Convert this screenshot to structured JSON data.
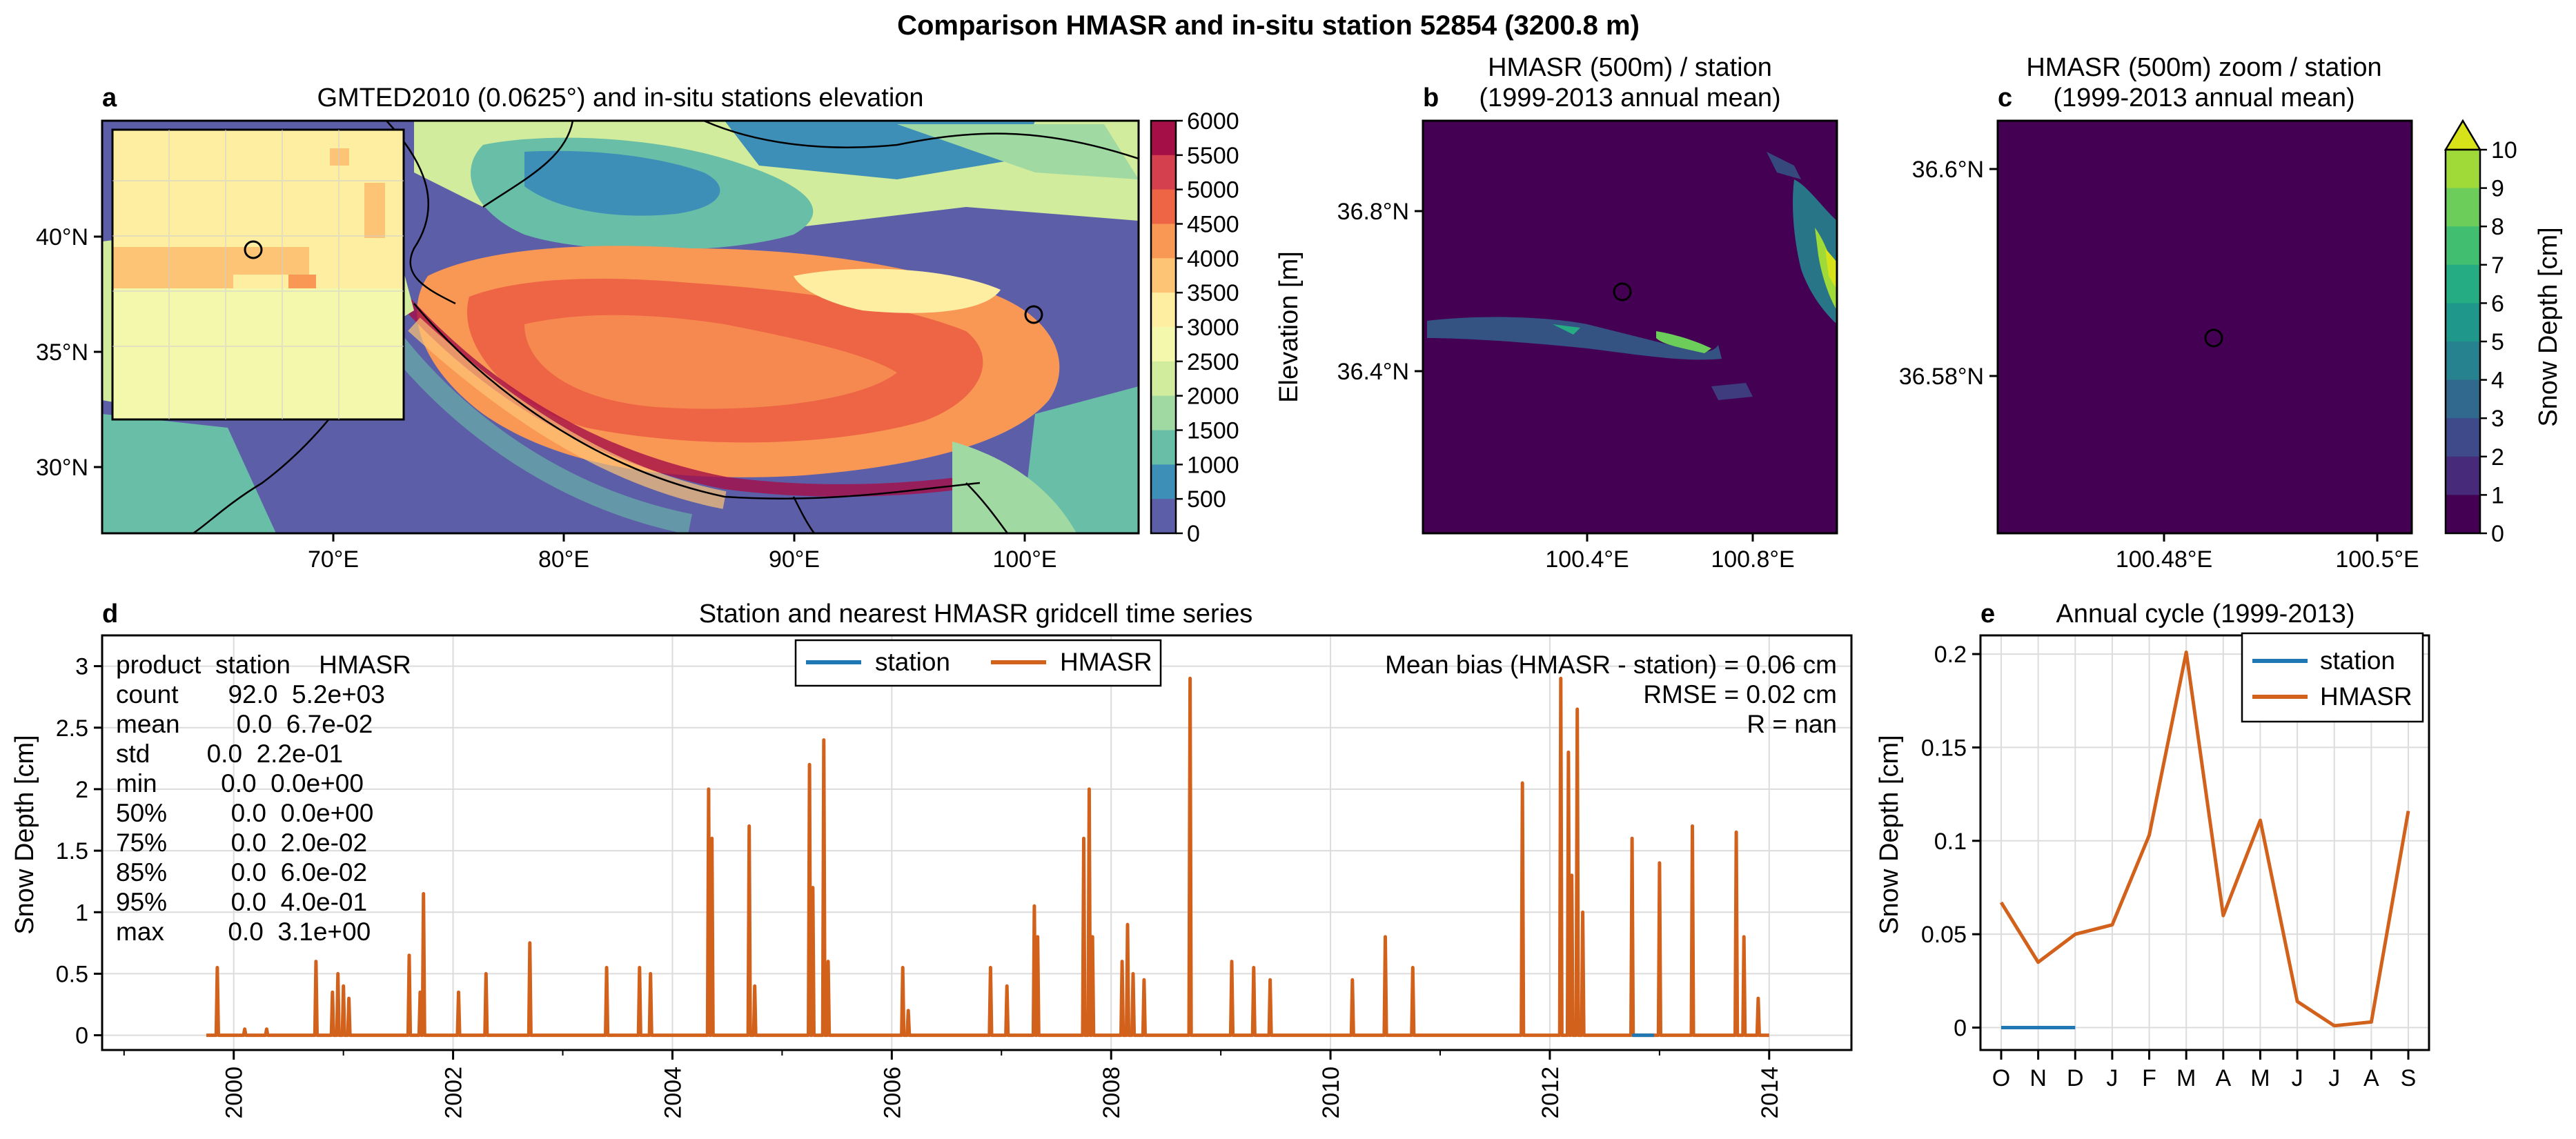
{
  "suptitle": "Comparison HMASR and in-situ station 52854 (3200.8 m)",
  "panels": {
    "a": {
      "letter": "a",
      "title": "GMTED2010 (0.0625°) and in-situ stations elevation",
      "xticks": [
        "70°E",
        "80°E",
        "90°E",
        "100°E"
      ],
      "yticks": [
        "40°N",
        "35°N",
        "30°N"
      ],
      "colorbar_label": "Elevation [m]",
      "colorbar_ticks": [
        "6000",
        "5500",
        "5000",
        "4500",
        "4000",
        "3500",
        "3000",
        "2500",
        "2000",
        "1500",
        "1000",
        "500",
        "0"
      ],
      "colorbar_colors": [
        "#a50f47",
        "#d4404e",
        "#ee6545",
        "#f99855",
        "#fdc476",
        "#feeea2",
        "#f4f8ad",
        "#d0ec9c",
        "#a1d9a3",
        "#69bea7",
        "#3d8fb8",
        "#5d5ea8"
      ]
    },
    "b": {
      "letter": "b",
      "title_line1": "HMASR (500m) / station",
      "title_line2": "(1999-2013 annual mean)",
      "xticks": [
        "100.4°E",
        "100.8°E"
      ],
      "yticks": [
        "36.8°N",
        "36.4°N"
      ]
    },
    "c": {
      "letter": "c",
      "title_line1": "HMASR (500m) zoom / station",
      "title_line2": "(1999-2013 annual mean)",
      "xticks": [
        "100.48°E",
        "100.5°E"
      ],
      "yticks": [
        "36.6°N",
        "36.58°N"
      ],
      "colorbar_label": "Snow Depth [cm]",
      "colorbar_ticks": [
        "10",
        "9",
        "8",
        "7",
        "6",
        "5",
        "4",
        "3",
        "2",
        "1",
        "0"
      ],
      "colorbar_colors": [
        "#d8e219",
        "#a0da39",
        "#6ccd5a",
        "#42be71",
        "#25ac82",
        "#1f988b",
        "#26828e",
        "#31688e",
        "#3e4a89",
        "#472a7a",
        "#440154"
      ]
    },
    "d": {
      "letter": "d",
      "title": "Station and nearest HMASR gridcell time series",
      "ylabel": "Snow Depth [cm]",
      "legend": [
        "station",
        "HMASR"
      ],
      "stats_header": "product  station    HMASR",
      "stats_rows": [
        "count       92.0  5.2e+03",
        "mean        0.0  6.7e-02",
        "std        0.0  2.2e-01",
        "min         0.0  0.0e+00",
        "50%         0.0  0.0e+00",
        "75%         0.0  2.0e-02",
        "85%         0.0  6.0e-02",
        "95%         0.0  4.0e-01",
        "max         0.0  3.1e+00"
      ],
      "metrics": [
        "Mean bias (HMASR - station) = 0.06 cm",
        "RMSE = 0.02 cm",
        "R = nan"
      ]
    },
    "e": {
      "letter": "e",
      "title": "Annual cycle (1999-2013)",
      "ylabel": "Snow Depth [cm]",
      "legend": [
        "station",
        "HMASR"
      ]
    }
  },
  "colors": {
    "station": "#1f77b4",
    "hmasr": "#d2611c",
    "map_dark": "#440154"
  },
  "chart_data": [
    {
      "type": "line",
      "panel": "d",
      "title": "Station and nearest HMASR gridcell time series",
      "xlabel": "",
      "ylabel": "Snow Depth [cm]",
      "xlim": [
        1998.8,
        2014.75
      ],
      "ylim": [
        -0.12,
        3.25
      ],
      "xticks": [
        2000,
        2002,
        2004,
        2006,
        2008,
        2010,
        2012,
        2014
      ],
      "yticks": [
        0,
        0.5,
        1,
        1.5,
        2,
        2.5,
        3
      ],
      "ytick_labels": [
        "0",
        "0.5",
        "1",
        "1.5",
        "2",
        "2.5",
        "3"
      ],
      "grid": true,
      "legend_position": "top-center",
      "series": [
        {
          "name": "station",
          "x": [
            2012.75,
            2012.95
          ],
          "y": [
            0.0,
            0.0
          ]
        },
        {
          "name": "HMASR",
          "x": [
            1999.8,
            1999.85,
            1999.88,
            1999.9,
            2000.1,
            2000.3,
            2000.75,
            2000.8,
            2000.9,
            2000.95,
            2001.0,
            2001.05,
            2001.1,
            2001.6,
            2001.7,
            2001.73,
            2001.76,
            2002.05,
            2002.3,
            2002.35,
            2002.7,
            2003.4,
            2003.7,
            2003.8,
            2004.33,
            2004.36,
            2004.7,
            2004.75,
            2005.25,
            2005.28,
            2005.38,
            2005.42,
            2006.1,
            2006.15,
            2006.9,
            2007.05,
            2007.3,
            2007.33,
            2007.75,
            2007.8,
            2007.83,
            2008.1,
            2008.15,
            2008.2,
            2008.3,
            2008.72,
            2009.1,
            2009.3,
            2009.45,
            2010.2,
            2010.5,
            2010.75,
            2011.75,
            2012.1,
            2012.17,
            2012.2,
            2012.25,
            2012.3,
            2012.75,
            2013.0,
            2013.3,
            2013.7,
            2013.77,
            2013.9
          ],
          "y": [
            0.0,
            0.55,
            0.0,
            0.0,
            0.05,
            0.05,
            0.6,
            0.0,
            0.35,
            0.5,
            0.4,
            0.3,
            0.0,
            0.65,
            0.35,
            1.15,
            0.0,
            0.35,
            0.5,
            0.0,
            0.75,
            0.55,
            0.55,
            0.5,
            2.0,
            1.6,
            1.7,
            0.4,
            2.2,
            1.2,
            2.4,
            0.6,
            0.55,
            0.2,
            0.55,
            0.4,
            1.05,
            0.8,
            1.6,
            2.0,
            0.8,
            0.6,
            0.9,
            0.5,
            0.45,
            2.9,
            0.6,
            0.55,
            0.45,
            0.45,
            0.8,
            0.55,
            2.05,
            2.9,
            2.3,
            1.3,
            2.65,
            1.0,
            1.6,
            1.4,
            1.7,
            1.65,
            0.8,
            0.3
          ]
        }
      ]
    },
    {
      "type": "line",
      "panel": "e",
      "title": "Annual cycle (1999-2013)",
      "xlabel": "",
      "ylabel": "Snow Depth [cm]",
      "categories": [
        "O",
        "N",
        "D",
        "J",
        "F",
        "M",
        "A",
        "M",
        "J",
        "J",
        "A",
        "S"
      ],
      "ylim": [
        -0.012,
        0.21
      ],
      "yticks": [
        0,
        0.05,
        0.1,
        0.15,
        0.2
      ],
      "ytick_labels": [
        "0",
        "0.05",
        "0.1",
        "0.15",
        "0.2"
      ],
      "grid": true,
      "legend_position": "top-right",
      "series": [
        {
          "name": "station",
          "values": [
            0.0,
            0.0,
            0.0,
            null,
            null,
            null,
            null,
            null,
            null,
            null,
            null,
            null
          ]
        },
        {
          "name": "HMASR",
          "values": [
            0.067,
            0.035,
            0.05,
            0.055,
            0.103,
            0.201,
            0.06,
            0.111,
            0.014,
            0.001,
            0.003,
            0.116
          ]
        }
      ]
    }
  ]
}
